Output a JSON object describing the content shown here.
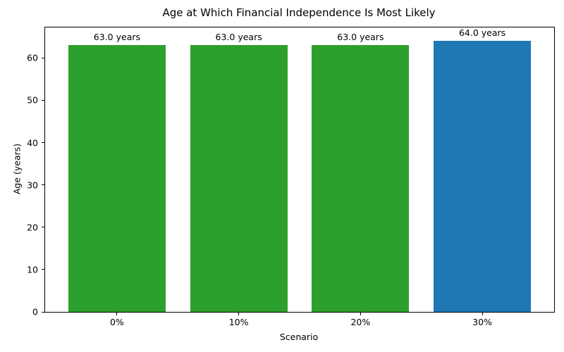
{
  "chart_data": {
    "type": "bar",
    "title": "Age at Which Financial Independence Is Most Likely",
    "xlabel": "Scenario",
    "ylabel": "Age (years)",
    "categories": [
      "0%",
      "10%",
      "20%",
      "30%"
    ],
    "values": [
      63.0,
      63.0,
      63.0,
      64.0
    ],
    "bar_labels": [
      "63.0 years",
      "63.0 years",
      "63.0 years",
      "64.0 years"
    ],
    "bar_colors": [
      "#2ca02c",
      "#2ca02c",
      "#2ca02c",
      "#1f77b4"
    ],
    "ylim": [
      0,
      67.2
    ],
    "xlim": [
      -0.59,
      3.59
    ],
    "bar_width_units": 0.8,
    "yticks": [
      0,
      10,
      20,
      30,
      40,
      50,
      60
    ],
    "grid": false,
    "legend": "none",
    "plot_background": "#ffffff",
    "axis_color": "#000000"
  }
}
